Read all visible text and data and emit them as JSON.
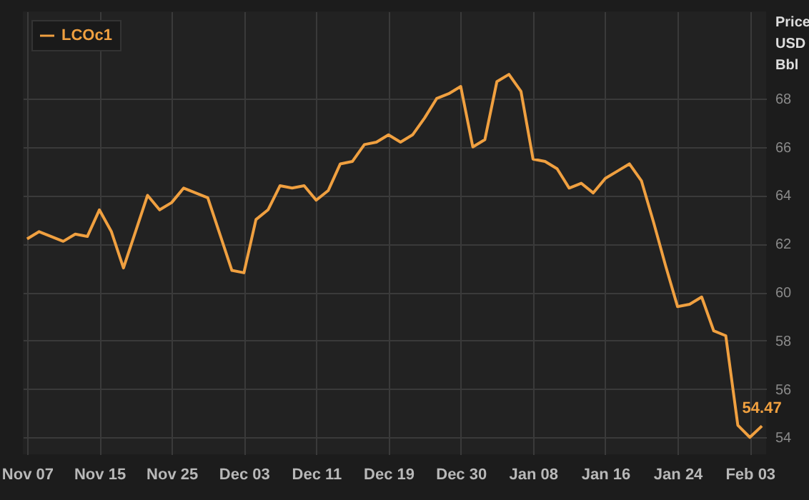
{
  "chart_data": {
    "type": "line",
    "ylabel": "Price USD Bbl",
    "categories": [
      "Nov 07",
      null,
      null,
      null,
      null,
      null,
      "Nov 15",
      null,
      null,
      null,
      null,
      null,
      "Nov 25",
      null,
      null,
      null,
      null,
      null,
      "Dec 03",
      null,
      null,
      null,
      null,
      null,
      "Dec 11",
      null,
      null,
      null,
      null,
      null,
      "Dec 19",
      null,
      null,
      null,
      null,
      null,
      "Dec 30",
      null,
      null,
      null,
      null,
      null,
      "Jan 08",
      null,
      null,
      null,
      null,
      null,
      "Jan 16",
      null,
      null,
      null,
      null,
      null,
      "Jan 24",
      null,
      null,
      null,
      null,
      null,
      "Feb 03",
      null
    ],
    "series": [
      {
        "name": "LCOc1",
        "color": "#f0a040",
        "values": [
          62.2,
          62.5,
          62.3,
          62.1,
          62.4,
          62.3,
          63.4,
          62.5,
          61.0,
          62.5,
          64.0,
          63.4,
          63.7,
          64.3,
          64.1,
          63.9,
          62.4,
          60.9,
          60.8,
          63.0,
          63.4,
          64.4,
          64.3,
          64.4,
          63.8,
          64.2,
          65.3,
          65.4,
          66.1,
          66.2,
          66.5,
          66.2,
          66.5,
          67.2,
          68.0,
          68.2,
          68.5,
          66.0,
          66.3,
          68.7,
          69.0,
          68.3,
          65.5,
          65.4,
          65.1,
          64.3,
          64.5,
          64.1,
          64.7,
          65.0,
          65.3,
          64.6,
          62.9,
          61.1,
          59.4,
          59.5,
          59.8,
          58.4,
          58.2,
          54.5,
          54.0,
          54.47
        ]
      }
    ],
    "annotations": [
      {
        "text": "54.47",
        "y": 54.47
      }
    ],
    "ylim": [
      53.3,
      71.6
    ],
    "yticks": [
      54,
      56,
      58,
      60,
      62,
      64,
      66,
      68
    ],
    "grid": true,
    "legend": "top left",
    "marker": "none",
    "line_style": "solid"
  }
}
